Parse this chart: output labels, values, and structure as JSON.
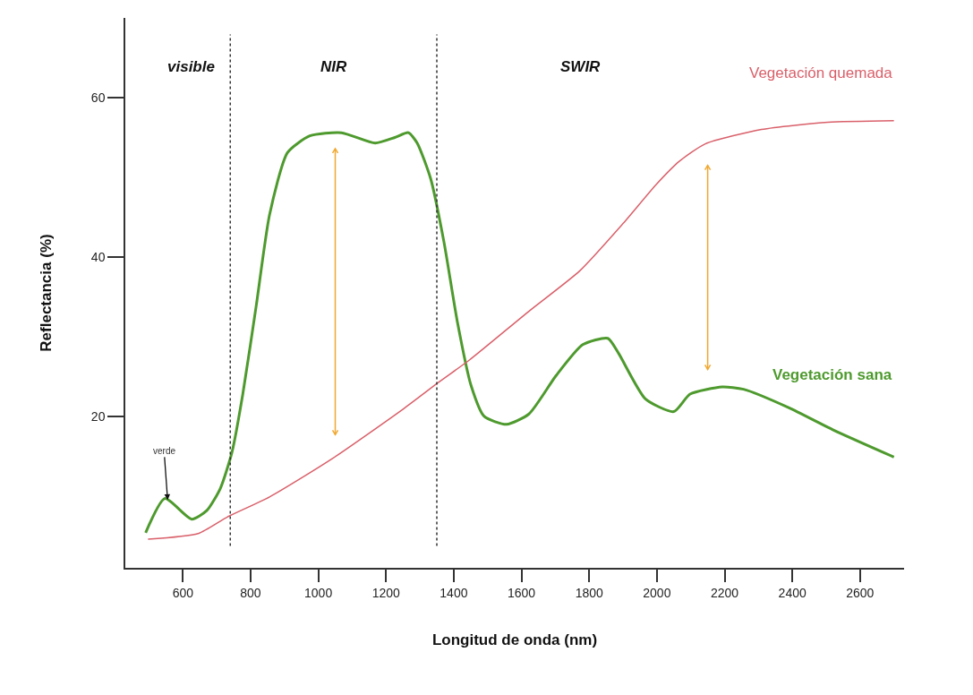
{
  "chart_data": {
    "type": "line",
    "xlabel": "Longitud de onda (nm)",
    "ylabel": "Reflectancia (%)",
    "xlim": [
      430,
      2730
    ],
    "ylim": [
      1,
      70
    ],
    "xticks": [
      600,
      800,
      1000,
      1200,
      1400,
      1600,
      1800,
      2000,
      2200,
      2400,
      2600
    ],
    "yticks": [
      20,
      40,
      60
    ],
    "grid": false,
    "legend": false,
    "marker": "none",
    "line_style": "solid",
    "series": [
      {
        "name": "Vegetación sana",
        "color": "#4e9a2e",
        "x": [
          490,
          547,
          626,
          671,
          711,
          745,
          777,
          817,
          856,
          909,
          975,
          1068,
          1168,
          1226,
          1266,
          1292,
          1332,
          1371,
          1411,
          1451,
          1490,
          1556,
          1622,
          1702,
          1781,
          1855,
          1887,
          1966,
          2050,
          2098,
          2193,
          2256,
          2389,
          2521,
          2700
        ],
        "values": [
          5.4,
          9.7,
          7.1,
          8.2,
          11,
          15.5,
          22.8,
          34,
          45.3,
          53.1,
          55.2,
          55.6,
          54.3,
          55,
          55.6,
          54.3,
          49.8,
          41.9,
          31.8,
          23.9,
          20,
          19,
          20.3,
          25.1,
          29,
          29.8,
          27.9,
          22.2,
          20.6,
          22.8,
          23.7,
          23.4,
          21.1,
          18.3,
          14.9
        ]
      },
      {
        "name": "Vegetación quemada",
        "color": "#d9606a",
        "x": [
          497,
          645,
          732,
          856,
          1041,
          1253,
          1356,
          1447,
          1625,
          1773,
          1900,
          1998,
          2066,
          2143,
          2309,
          2505,
          2700
        ],
        "values": [
          4.6,
          5.3,
          7.4,
          9.9,
          14.7,
          21,
          24.3,
          27.1,
          33.3,
          38.3,
          44.2,
          49.1,
          52,
          54.2,
          56,
          56.9,
          57.1
        ]
      }
    ],
    "ref_lines": [
      {
        "axis": "x",
        "value": 740,
        "color": "#333333",
        "line_style": "dotted"
      },
      {
        "axis": "x",
        "value": 1350,
        "color": "#333333",
        "line_style": "dotted"
      }
    ],
    "annotations": [
      "visible",
      "NIR",
      "SWIR",
      {
        "text": "verde",
        "x": 555,
        "y": 9.5
      }
    ]
  }
}
